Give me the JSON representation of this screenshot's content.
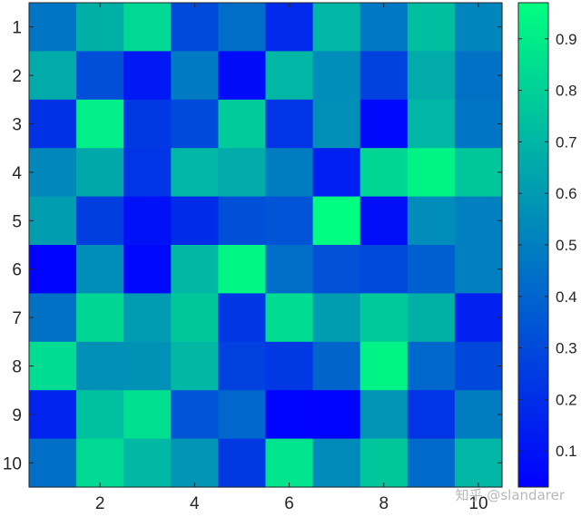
{
  "chart_data": {
    "type": "heatmap",
    "rows": 10,
    "cols": 10,
    "x_tick_labels": [
      "2",
      "4",
      "6",
      "8",
      "10"
    ],
    "x_tick_values": [
      2,
      4,
      6,
      8,
      10
    ],
    "y_tick_labels": [
      "1",
      "2",
      "3",
      "4",
      "5",
      "6",
      "7",
      "8",
      "9",
      "10"
    ],
    "y_tick_values": [
      1,
      2,
      3,
      4,
      5,
      6,
      7,
      8,
      9,
      10
    ],
    "values": [
      [
        0.46,
        0.68,
        0.83,
        0.3,
        0.43,
        0.18,
        0.7,
        0.47,
        0.73,
        0.52
      ],
      [
        0.66,
        0.32,
        0.12,
        0.48,
        0.07,
        0.7,
        0.55,
        0.27,
        0.66,
        0.45
      ],
      [
        0.21,
        0.91,
        0.24,
        0.3,
        0.78,
        0.22,
        0.56,
        0.06,
        0.7,
        0.46
      ],
      [
        0.53,
        0.65,
        0.22,
        0.7,
        0.66,
        0.49,
        0.14,
        0.82,
        0.93,
        0.76
      ],
      [
        0.61,
        0.26,
        0.09,
        0.19,
        0.32,
        0.34,
        0.97,
        0.08,
        0.55,
        0.5
      ],
      [
        0.04,
        0.55,
        0.06,
        0.71,
        0.94,
        0.43,
        0.33,
        0.3,
        0.38,
        0.5
      ],
      [
        0.45,
        0.82,
        0.6,
        0.76,
        0.23,
        0.84,
        0.61,
        0.77,
        0.68,
        0.15
      ],
      [
        0.84,
        0.56,
        0.57,
        0.71,
        0.27,
        0.24,
        0.4,
        0.93,
        0.41,
        0.29
      ],
      [
        0.16,
        0.74,
        0.85,
        0.34,
        0.41,
        0.04,
        0.04,
        0.58,
        0.22,
        0.49
      ],
      [
        0.44,
        0.83,
        0.71,
        0.58,
        0.24,
        0.87,
        0.54,
        0.76,
        0.42,
        0.7
      ]
    ],
    "colormap": [
      "#0000ff",
      "#00ff80"
    ],
    "colorbar": {
      "range": [
        0.03,
        0.97
      ],
      "ticks": [
        0.1,
        0.2,
        0.3,
        0.4,
        0.5,
        0.6,
        0.7,
        0.8,
        0.9
      ],
      "tick_labels": [
        "0.1",
        "0.2",
        "0.3",
        "0.4",
        "0.5",
        "0.6",
        "0.7",
        "0.8",
        "0.9"
      ]
    },
    "grid": false,
    "title": "",
    "xlabel": "",
    "ylabel": ""
  },
  "watermark": "知乎 @slandarer"
}
